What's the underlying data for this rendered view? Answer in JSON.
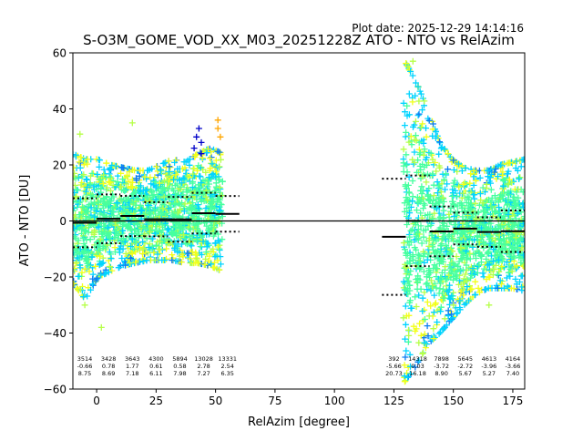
{
  "plot_date": "Plot date: 2025-12-29 14:14:16",
  "chart_data": {
    "type": "scatter",
    "title": "S-O3M_GOME_VOD_XX_M03_20251228Z ATO - NTO vs RelAzim",
    "xlabel": "RelAzim [degree]",
    "ylabel": "ATO - NTO [DU]",
    "xlim": [
      -10,
      180
    ],
    "ylim": [
      -60,
      60
    ],
    "x_ticks": [
      0,
      25,
      50,
      75,
      100,
      125,
      150,
      175
    ],
    "y_ticks": [
      -60,
      -40,
      -20,
      0,
      20,
      40,
      60
    ],
    "grid": false,
    "legend": "none",
    "zero_line": 0,
    "colors": {
      "scatter_core": "#46ff9f",
      "scatter_cyan": "#00d4ff",
      "scatter_blue": "#0a7cf2",
      "scatter_yellow": "#f2ff1a",
      "scatter_lime": "#b6ff48",
      "scatter_orange": "#ffa600",
      "scatter_navy": "#0000c8",
      "mean_line": "#000000",
      "std_line": "#000000"
    },
    "point_clouds": [
      {
        "x_range": [
          -10,
          53
        ],
        "lower": [
          -22,
          -28,
          -20,
          -18,
          -16,
          -15,
          -14,
          -14,
          -14,
          -15,
          -15,
          -16,
          -18
        ],
        "upper": [
          24,
          22,
          22,
          20,
          19,
          18,
          18,
          20,
          22,
          21,
          24,
          26,
          24
        ]
      },
      {
        "x_range": [
          129,
          180
        ],
        "lower": [
          -58,
          -52,
          -44,
          -40,
          -35,
          -30,
          -26,
          -24,
          -24,
          -24,
          -25
        ],
        "upper": [
          58,
          50,
          40,
          28,
          22,
          19,
          18,
          18,
          20,
          21,
          22
        ]
      }
    ],
    "bins": [
      {
        "x_start": -10,
        "x_end": 0,
        "mean": -0.66,
        "std": 8.75,
        "count": 3514
      },
      {
        "x_start": 0,
        "x_end": 10,
        "mean": 0.78,
        "std": 8.69,
        "count": 3428
      },
      {
        "x_start": 10,
        "x_end": 20,
        "mean": 1.77,
        "std": 7.18,
        "count": 3643
      },
      {
        "x_start": 20,
        "x_end": 30,
        "mean": 0.61,
        "std": 6.11,
        "count": 4300
      },
      {
        "x_start": 30,
        "x_end": 40,
        "mean": 0.58,
        "std": 7.98,
        "count": 5894
      },
      {
        "x_start": 40,
        "x_end": 50,
        "mean": 2.78,
        "std": 7.27,
        "count": 13028
      },
      {
        "x_start": 50,
        "x_end": 60,
        "mean": 2.54,
        "std": 6.35,
        "count": 13331
      },
      {
        "x_start": 120,
        "x_end": 130,
        "mean": -5.66,
        "std": 20.73,
        "count": 392
      },
      {
        "x_start": 130,
        "x_end": 140,
        "mean": 0.03,
        "std": 16.18,
        "count": 14318
      },
      {
        "x_start": 140,
        "x_end": 150,
        "mean": -3.72,
        "std": 8.9,
        "count": 7898
      },
      {
        "x_start": 150,
        "x_end": 160,
        "mean": -2.72,
        "std": 5.67,
        "count": 5645
      },
      {
        "x_start": 160,
        "x_end": 170,
        "mean": -3.96,
        "std": 5.27,
        "count": 4613
      },
      {
        "x_start": 170,
        "x_end": 180,
        "mean": -3.66,
        "std": 7.4,
        "count": 4164
      }
    ],
    "bin_label_columns": [
      {
        "x": -5,
        "lines": [
          "3514",
          "-0.66",
          "8.75"
        ]
      },
      {
        "x": 5,
        "lines": [
          "3428",
          "0.78",
          "8.69"
        ]
      },
      {
        "x": 15,
        "lines": [
          "3643",
          "1.77",
          "7.18"
        ]
      },
      {
        "x": 25,
        "lines": [
          "4300",
          "0.61",
          "6.11"
        ]
      },
      {
        "x": 35,
        "lines": [
          "5894",
          "0.58",
          "7.98"
        ]
      },
      {
        "x": 45,
        "lines": [
          "13028",
          "2.78",
          "7.27"
        ]
      },
      {
        "x": 55,
        "lines": [
          "13331",
          "2.54",
          "6.35"
        ]
      },
      {
        "x": 125,
        "lines": [
          "392",
          "-5.66",
          "20.73"
        ]
      },
      {
        "x": 135,
        "lines": [
          "14318",
          "0.03",
          "16.18"
        ]
      },
      {
        "x": 145,
        "lines": [
          "7898",
          "-3.72",
          "8.90"
        ]
      },
      {
        "x": 155,
        "lines": [
          "5645",
          "-2.72",
          "5.67"
        ]
      },
      {
        "x": 165,
        "lines": [
          "4613",
          "-3.96",
          "5.27"
        ]
      },
      {
        "x": 175,
        "lines": [
          "4164",
          "-3.66",
          "7.40"
        ]
      }
    ]
  }
}
